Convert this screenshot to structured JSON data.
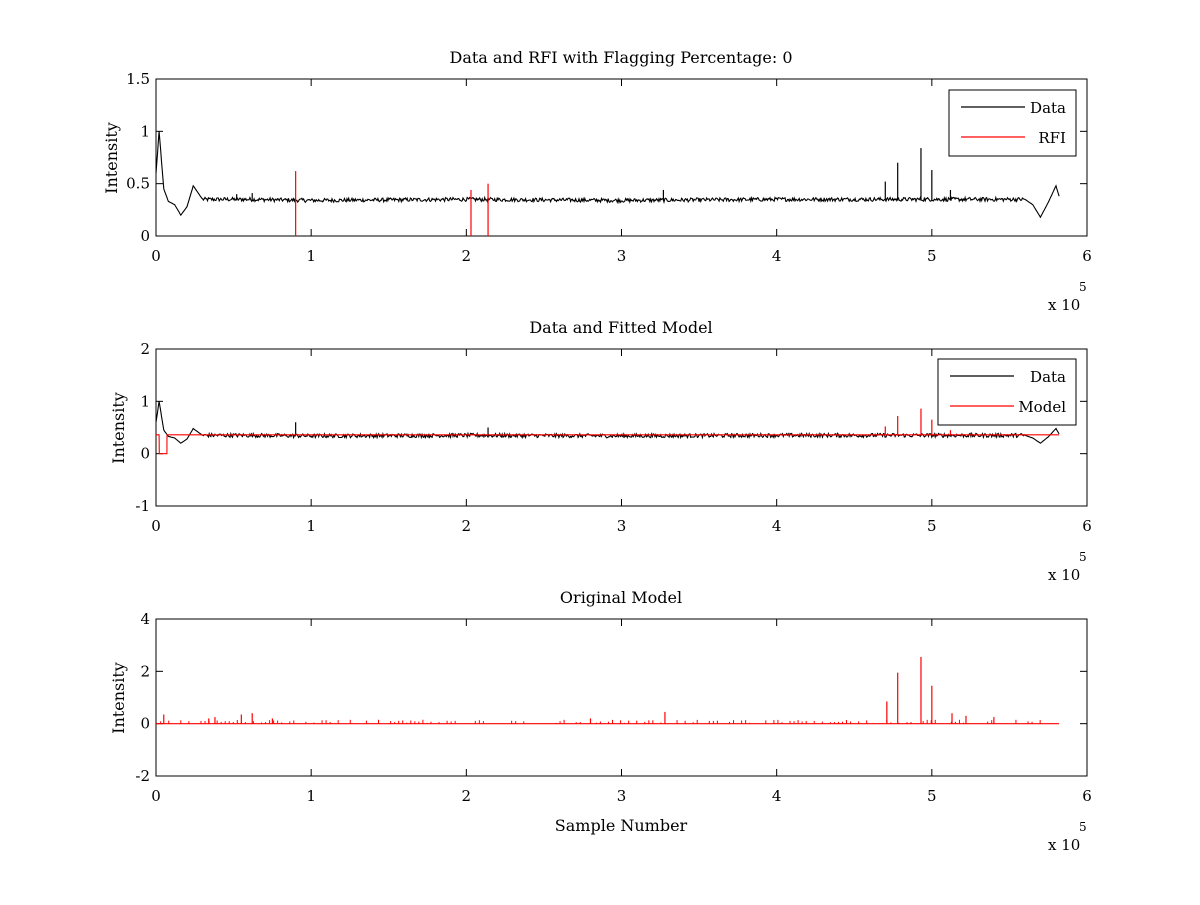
{
  "figure": {
    "background": "#ffffff",
    "data_color": "#000000",
    "rfi_color": "#ff0000"
  },
  "chart_data": [
    {
      "type": "line",
      "title": "Data and RFI with Flagging Percentage: 0",
      "xlabel": "",
      "ylabel": "Intensity",
      "xlim": [
        0,
        600000
      ],
      "ylim": [
        0,
        1.5
      ],
      "xticks": [
        "0",
        "1",
        "2",
        "3",
        "4",
        "5",
        "6"
      ],
      "yticks": [
        "0",
        "0.5",
        "1",
        "1.5"
      ],
      "exponent": "x 10",
      "exponent_power": "5",
      "legend_position": "top-right",
      "legend": [
        {
          "label": "Data",
          "color": "#000000"
        },
        {
          "label": "RFI",
          "color": "#ff0000"
        }
      ],
      "series": [
        {
          "name": "Data",
          "color": "#000000",
          "baseline": 0.34,
          "x": [
            0,
            2000,
            5000,
            8000,
            12000,
            16000,
            20000,
            24000,
            30000,
            60000,
            100000,
            200000,
            300000,
            400000,
            500000,
            560000,
            565000,
            570000,
            575000,
            580000,
            582000
          ],
          "y": [
            0.6,
            1.0,
            0.45,
            0.33,
            0.3,
            0.2,
            0.28,
            0.48,
            0.35,
            0.35,
            0.34,
            0.35,
            0.34,
            0.35,
            0.35,
            0.35,
            0.3,
            0.18,
            0.32,
            0.48,
            0.38
          ],
          "spikes": [
            {
              "x": 470000,
              "y": 0.52
            },
            {
              "x": 478000,
              "y": 0.7
            },
            {
              "x": 493000,
              "y": 0.84
            },
            {
              "x": 500000,
              "y": 0.63
            },
            {
              "x": 327000,
              "y": 0.44
            },
            {
              "x": 512000,
              "y": 0.44
            },
            {
              "x": 52000,
              "y": 0.4
            },
            {
              "x": 62000,
              "y": 0.41
            }
          ]
        },
        {
          "name": "RFI",
          "color": "#ff0000",
          "spikes": [
            {
              "x": 90000,
              "y": 0.62
            },
            {
              "x": 203000,
              "y": 0.44
            },
            {
              "x": 214000,
              "y": 0.5
            }
          ]
        }
      ]
    },
    {
      "type": "line",
      "title": "Data and Fitted Model",
      "xlabel": "",
      "ylabel": "Intensity",
      "xlim": [
        0,
        600000
      ],
      "ylim": [
        -1,
        2
      ],
      "xticks": [
        "0",
        "1",
        "2",
        "3",
        "4",
        "5",
        "6"
      ],
      "yticks": [
        "-1",
        "0",
        "1",
        "2"
      ],
      "exponent": "x 10",
      "exponent_power": "5",
      "legend_position": "top-right",
      "legend": [
        {
          "label": "Data",
          "color": "#000000"
        },
        {
          "label": "Model",
          "color": "#ff0000"
        }
      ],
      "series": [
        {
          "name": "Data",
          "color": "#000000",
          "baseline": 0.35,
          "x": [
            0,
            2000,
            5000,
            8000,
            12000,
            16000,
            20000,
            24000,
            30000,
            60000,
            100000,
            200000,
            300000,
            400000,
            500000,
            560000,
            565000,
            570000,
            575000,
            580000,
            582000
          ],
          "y": [
            0.6,
            1.0,
            0.45,
            0.33,
            0.3,
            0.2,
            0.28,
            0.48,
            0.35,
            0.35,
            0.34,
            0.35,
            0.34,
            0.35,
            0.35,
            0.35,
            0.3,
            0.2,
            0.32,
            0.48,
            0.38
          ],
          "spikes": [
            {
              "x": 90000,
              "y": 0.6
            },
            {
              "x": 214000,
              "y": 0.5
            }
          ]
        },
        {
          "name": "Model",
          "color": "#ff0000",
          "baseline": 0.36,
          "x": [
            0,
            2000,
            2100,
            7000,
            7100,
            582000
          ],
          "y": [
            0.36,
            0.36,
            0.0,
            0.0,
            0.36,
            0.36
          ],
          "spikes": [
            {
              "x": 470000,
              "y": 0.52
            },
            {
              "x": 478000,
              "y": 0.72
            },
            {
              "x": 493000,
              "y": 0.86
            },
            {
              "x": 500000,
              "y": 0.65
            },
            {
              "x": 512000,
              "y": 0.45
            }
          ]
        }
      ]
    },
    {
      "type": "line",
      "title": "Original Model",
      "xlabel": "Sample Number",
      "ylabel": "Intensity",
      "xlim": [
        0,
        600000
      ],
      "ylim": [
        -2,
        4
      ],
      "xticks": [
        "0",
        "1",
        "2",
        "3",
        "4",
        "5",
        "6"
      ],
      "yticks": [
        "-2",
        "0",
        "2",
        "4"
      ],
      "exponent": "x 10",
      "exponent_power": "5",
      "legend": [],
      "series": [
        {
          "name": "Model",
          "color": "#ff0000",
          "baseline": 0.0,
          "x": [
            0,
            582000
          ],
          "y": [
            0,
            0
          ],
          "spikes": [
            {
              "x": 5000,
              "y": 0.35
            },
            {
              "x": 34000,
              "y": 0.2
            },
            {
              "x": 38000,
              "y": 0.25
            },
            {
              "x": 55000,
              "y": 0.35
            },
            {
              "x": 62000,
              "y": 0.4
            },
            {
              "x": 75000,
              "y": 0.2
            },
            {
              "x": 280000,
              "y": 0.2
            },
            {
              "x": 328000,
              "y": 0.45
            },
            {
              "x": 471000,
              "y": 0.85
            },
            {
              "x": 478000,
              "y": 1.95
            },
            {
              "x": 493000,
              "y": 2.55
            },
            {
              "x": 500000,
              "y": 1.45
            },
            {
              "x": 513000,
              "y": 0.4
            },
            {
              "x": 522000,
              "y": 0.3
            },
            {
              "x": 540000,
              "y": 0.25
            }
          ]
        }
      ]
    }
  ]
}
